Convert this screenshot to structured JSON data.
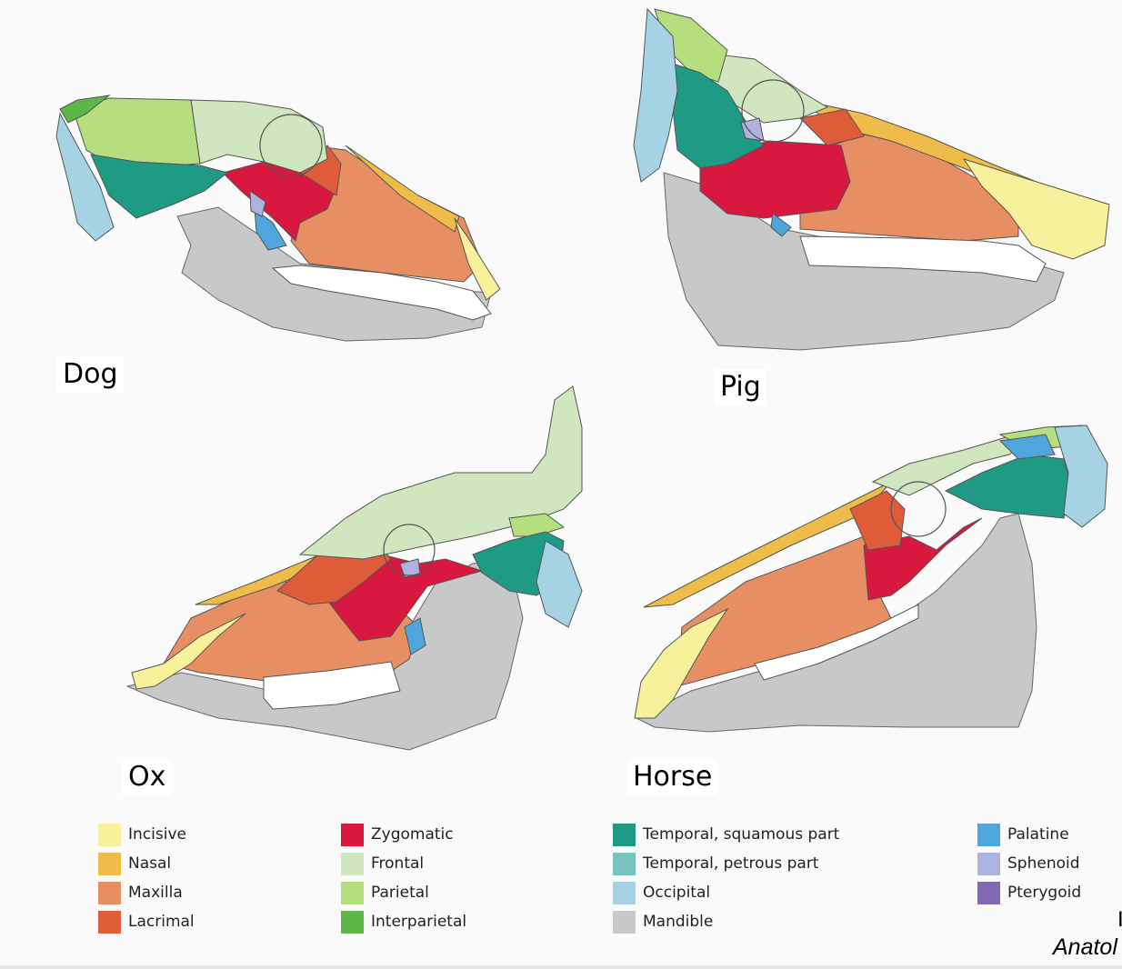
{
  "animals": {
    "dog": "Dog",
    "pig": "Pig",
    "ox": "Ox",
    "horse": "Horse"
  },
  "colors": {
    "incisive": "#f6f19a",
    "nasal": "#efbc4a",
    "maxilla": "#e78f63",
    "lacrimal": "#df5c3a",
    "zygomatic": "#d8183e",
    "frontal": "#cfe6bf",
    "parietal": "#b5de7e",
    "interparietal": "#5cb648",
    "temporal_squamous": "#1f9a84",
    "temporal_petrous": "#78c2c0",
    "occipital": "#a6d3e3",
    "mandible": "#c7c8ca",
    "palatine": "#4fa6dd",
    "sphenoid": "#aeb2dd",
    "pterygoid": "#8069b0",
    "teeth": "#ffffff"
  },
  "legend": {
    "incisive": "Incisive",
    "nasal": "Nasal",
    "maxilla": "Maxilla",
    "lacrimal": "Lacrimal",
    "zygomatic": "Zygomatic",
    "frontal": "Frontal",
    "parietal": "Parietal",
    "interparietal": "Interparietal",
    "temporal_squamous": "Temporal, squamous part",
    "temporal_petrous": "Temporal, petrous part",
    "occipital": "Occipital",
    "mandible": "Mandible",
    "palatine": "Palatine",
    "sphenoid": "Sphenoid",
    "pterygoid": "Pterygoid"
  },
  "credit": {
    "mark": "I",
    "text": "Anatol"
  }
}
